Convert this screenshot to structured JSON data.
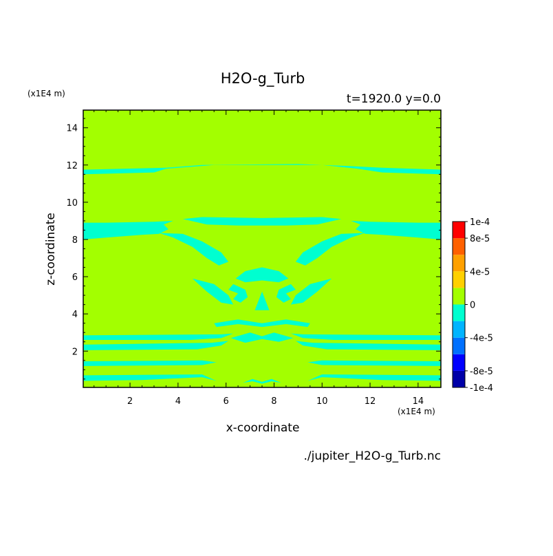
{
  "chart_data": {
    "type": "heatmap",
    "title": "H2O-g_Turb",
    "subtitle": "t=1920.0 y=0.0",
    "xlabel": "x-coordinate",
    "ylabel": "z-coordinate",
    "x_unit": "(x1E4 m)",
    "y_unit": "(x1E4 m)",
    "source_file": "./jupiter_H2O-g_Turb.nc",
    "xlim": [
      0.05,
      14.95
    ],
    "ylim": [
      0.05,
      14.95
    ],
    "x_ticks": [
      "2",
      "4",
      "6",
      "8",
      "10",
      "12",
      "14"
    ],
    "y_ticks": [
      "2",
      "4",
      "6",
      "8",
      "10",
      "12",
      "14"
    ],
    "x_tick_values": [
      2,
      4,
      6,
      8,
      10,
      12,
      14
    ],
    "y_tick_values": [
      2,
      4,
      6,
      8,
      10,
      12,
      14
    ],
    "background_value_color": "#a3ff00",
    "anomaly_color": "#00ffd0",
    "colorbar": {
      "labels": [
        "1e-4",
        "8e-5",
        "4e-5",
        "0",
        "-4e-5",
        "-8e-5",
        "-1e-4"
      ],
      "label_values": [
        0.0001,
        8e-05,
        4e-05,
        0,
        -4e-05,
        -8e-05,
        -0.0001
      ],
      "levels": [
        -0.0001,
        -8e-05,
        -6e-05,
        -4e-05,
        -2e-05,
        0,
        2e-05,
        4e-05,
        6e-05,
        8e-05,
        0.0001
      ],
      "colors": [
        "#0000a8",
        "#0000ff",
        "#0070ff",
        "#00b4ff",
        "#00ffd0",
        "#a3ff00",
        "#ffd000",
        "#ffa000",
        "#ff6000",
        "#ff0000",
        "#ff4040"
      ]
    },
    "negative_regions": [
      {
        "name": "band-11.7",
        "points": [
          [
            0.05,
            11.5
          ],
          [
            3.0,
            11.6
          ],
          [
            3.5,
            11.8
          ],
          [
            5.5,
            12.0
          ],
          [
            10.0,
            12.0
          ],
          [
            11.5,
            11.8
          ],
          [
            12.5,
            11.6
          ],
          [
            14.95,
            11.5
          ],
          [
            14.95,
            11.75
          ],
          [
            12.5,
            11.85
          ],
          [
            11.0,
            11.95
          ],
          [
            9.0,
            12.05
          ],
          [
            5.0,
            12.0
          ],
          [
            3.5,
            11.85
          ],
          [
            0.05,
            11.75
          ]
        ]
      },
      {
        "name": "band-8.5",
        "points": [
          [
            0.05,
            8.0
          ],
          [
            1.0,
            8.1
          ],
          [
            2.5,
            8.25
          ],
          [
            3.2,
            8.3
          ],
          [
            3.6,
            8.55
          ],
          [
            3.4,
            8.8
          ],
          [
            3.8,
            9.0
          ],
          [
            3.0,
            8.95
          ],
          [
            1.0,
            8.9
          ],
          [
            0.05,
            8.9
          ]
        ]
      },
      {
        "name": "band-8.5-right",
        "points": [
          [
            14.95,
            8.0
          ],
          [
            14.0,
            8.1
          ],
          [
            12.5,
            8.25
          ],
          [
            11.8,
            8.3
          ],
          [
            11.4,
            8.55
          ],
          [
            11.6,
            8.8
          ],
          [
            11.2,
            9.0
          ],
          [
            12.0,
            8.95
          ],
          [
            14.0,
            8.9
          ],
          [
            14.95,
            8.9
          ]
        ]
      },
      {
        "name": "arm-left",
        "points": [
          [
            3.2,
            8.35
          ],
          [
            4.2,
            8.3
          ],
          [
            5.0,
            7.9
          ],
          [
            5.8,
            7.3
          ],
          [
            6.1,
            6.8
          ],
          [
            5.7,
            6.6
          ],
          [
            5.2,
            7.0
          ],
          [
            4.6,
            7.6
          ],
          [
            3.8,
            8.1
          ]
        ]
      },
      {
        "name": "arm-right",
        "points": [
          [
            11.8,
            8.35
          ],
          [
            10.8,
            8.3
          ],
          [
            10.0,
            7.9
          ],
          [
            9.2,
            7.3
          ],
          [
            8.9,
            6.8
          ],
          [
            9.3,
            6.6
          ],
          [
            9.8,
            7.0
          ],
          [
            10.4,
            7.6
          ],
          [
            11.2,
            8.1
          ]
        ]
      },
      {
        "name": "arch-top",
        "points": [
          [
            4.2,
            9.1
          ],
          [
            5.2,
            8.8
          ],
          [
            6.5,
            8.75
          ],
          [
            8.5,
            8.75
          ],
          [
            9.8,
            8.8
          ],
          [
            10.8,
            9.1
          ],
          [
            10.0,
            9.2
          ],
          [
            7.5,
            9.15
          ],
          [
            5.0,
            9.2
          ]
        ]
      },
      {
        "name": "cap-center",
        "points": [
          [
            6.4,
            5.9
          ],
          [
            6.8,
            6.3
          ],
          [
            7.5,
            6.5
          ],
          [
            8.2,
            6.3
          ],
          [
            8.6,
            5.9
          ],
          [
            8.2,
            5.7
          ],
          [
            7.5,
            5.8
          ],
          [
            6.8,
            5.7
          ]
        ]
      },
      {
        "name": "wing-left",
        "points": [
          [
            4.6,
            5.9
          ],
          [
            5.5,
            5.6
          ],
          [
            6.1,
            5.0
          ],
          [
            6.3,
            4.5
          ],
          [
            5.8,
            4.6
          ],
          [
            5.2,
            5.2
          ]
        ]
      },
      {
        "name": "wing-right",
        "points": [
          [
            10.4,
            5.9
          ],
          [
            9.5,
            5.6
          ],
          [
            8.9,
            5.0
          ],
          [
            8.7,
            4.5
          ],
          [
            9.2,
            4.6
          ],
          [
            9.8,
            5.2
          ]
        ]
      },
      {
        "name": "hook-left",
        "points": [
          [
            6.3,
            5.6
          ],
          [
            6.8,
            5.3
          ],
          [
            6.9,
            4.9
          ],
          [
            6.6,
            4.6
          ],
          [
            6.3,
            4.8
          ],
          [
            6.5,
            5.1
          ],
          [
            6.1,
            5.3
          ]
        ]
      },
      {
        "name": "hook-right",
        "points": [
          [
            8.7,
            5.6
          ],
          [
            8.2,
            5.3
          ],
          [
            8.1,
            4.9
          ],
          [
            8.4,
            4.6
          ],
          [
            8.7,
            4.8
          ],
          [
            8.5,
            5.1
          ],
          [
            8.9,
            5.3
          ]
        ]
      },
      {
        "name": "spike-center",
        "points": [
          [
            7.2,
            4.2
          ],
          [
            7.5,
            5.2
          ],
          [
            7.8,
            4.2
          ]
        ]
      },
      {
        "name": "wave-3.5",
        "points": [
          [
            5.5,
            3.5
          ],
          [
            6.5,
            3.7
          ],
          [
            7.5,
            3.5
          ],
          [
            8.5,
            3.7
          ],
          [
            9.5,
            3.5
          ],
          [
            9.4,
            3.3
          ],
          [
            8.5,
            3.45
          ],
          [
            7.5,
            3.3
          ],
          [
            6.5,
            3.45
          ],
          [
            5.6,
            3.3
          ]
        ]
      },
      {
        "name": "band-2.7",
        "points": [
          [
            0.05,
            2.6
          ],
          [
            4.5,
            2.6
          ],
          [
            5.8,
            2.7
          ],
          [
            6.3,
            2.95
          ],
          [
            5.8,
            2.9
          ],
          [
            0.05,
            2.85
          ]
        ]
      },
      {
        "name": "band-2.7-right",
        "points": [
          [
            14.95,
            2.6
          ],
          [
            10.5,
            2.6
          ],
          [
            9.2,
            2.7
          ],
          [
            8.7,
            2.95
          ],
          [
            9.2,
            2.9
          ],
          [
            14.95,
            2.85
          ]
        ]
      },
      {
        "name": "band-2.2",
        "points": [
          [
            0.05,
            2.05
          ],
          [
            4.8,
            2.1
          ],
          [
            5.8,
            2.3
          ],
          [
            6.1,
            2.55
          ],
          [
            5.4,
            2.45
          ],
          [
            0.05,
            2.35
          ]
        ]
      },
      {
        "name": "band-2.2-right",
        "points": [
          [
            14.95,
            2.05
          ],
          [
            10.2,
            2.1
          ],
          [
            9.2,
            2.3
          ],
          [
            8.9,
            2.55
          ],
          [
            9.6,
            2.45
          ],
          [
            14.95,
            2.35
          ]
        ]
      },
      {
        "name": "swirl-center",
        "points": [
          [
            6.2,
            2.7
          ],
          [
            7.0,
            3.0
          ],
          [
            7.5,
            2.8
          ],
          [
            8.0,
            3.0
          ],
          [
            8.8,
            2.7
          ],
          [
            8.2,
            2.5
          ],
          [
            7.5,
            2.65
          ],
          [
            6.8,
            2.45
          ]
        ]
      },
      {
        "name": "band-1.3",
        "points": [
          [
            0.05,
            1.2
          ],
          [
            5.0,
            1.25
          ],
          [
            5.6,
            1.4
          ],
          [
            5.0,
            1.5
          ],
          [
            0.05,
            1.45
          ]
        ]
      },
      {
        "name": "band-1.3-right",
        "points": [
          [
            14.95,
            1.2
          ],
          [
            10.0,
            1.25
          ],
          [
            9.4,
            1.4
          ],
          [
            10.0,
            1.5
          ],
          [
            14.95,
            1.45
          ]
        ]
      },
      {
        "name": "band-0.5",
        "points": [
          [
            0.05,
            0.4
          ],
          [
            2.5,
            0.45
          ],
          [
            5.0,
            0.6
          ],
          [
            5.6,
            0.4
          ],
          [
            5.0,
            0.75
          ],
          [
            0.05,
            0.7
          ]
        ]
      },
      {
        "name": "band-0.5-right",
        "points": [
          [
            14.95,
            0.4
          ],
          [
            12.5,
            0.45
          ],
          [
            10.0,
            0.6
          ],
          [
            9.4,
            0.4
          ],
          [
            10.0,
            0.75
          ],
          [
            14.95,
            0.7
          ]
        ]
      },
      {
        "name": "bottom-arcs",
        "points": [
          [
            6.7,
            0.3
          ],
          [
            7.1,
            0.5
          ],
          [
            7.5,
            0.35
          ],
          [
            7.9,
            0.5
          ],
          [
            8.3,
            0.3
          ],
          [
            7.9,
            0.38
          ],
          [
            7.5,
            0.25
          ],
          [
            7.1,
            0.38
          ]
        ]
      }
    ]
  }
}
